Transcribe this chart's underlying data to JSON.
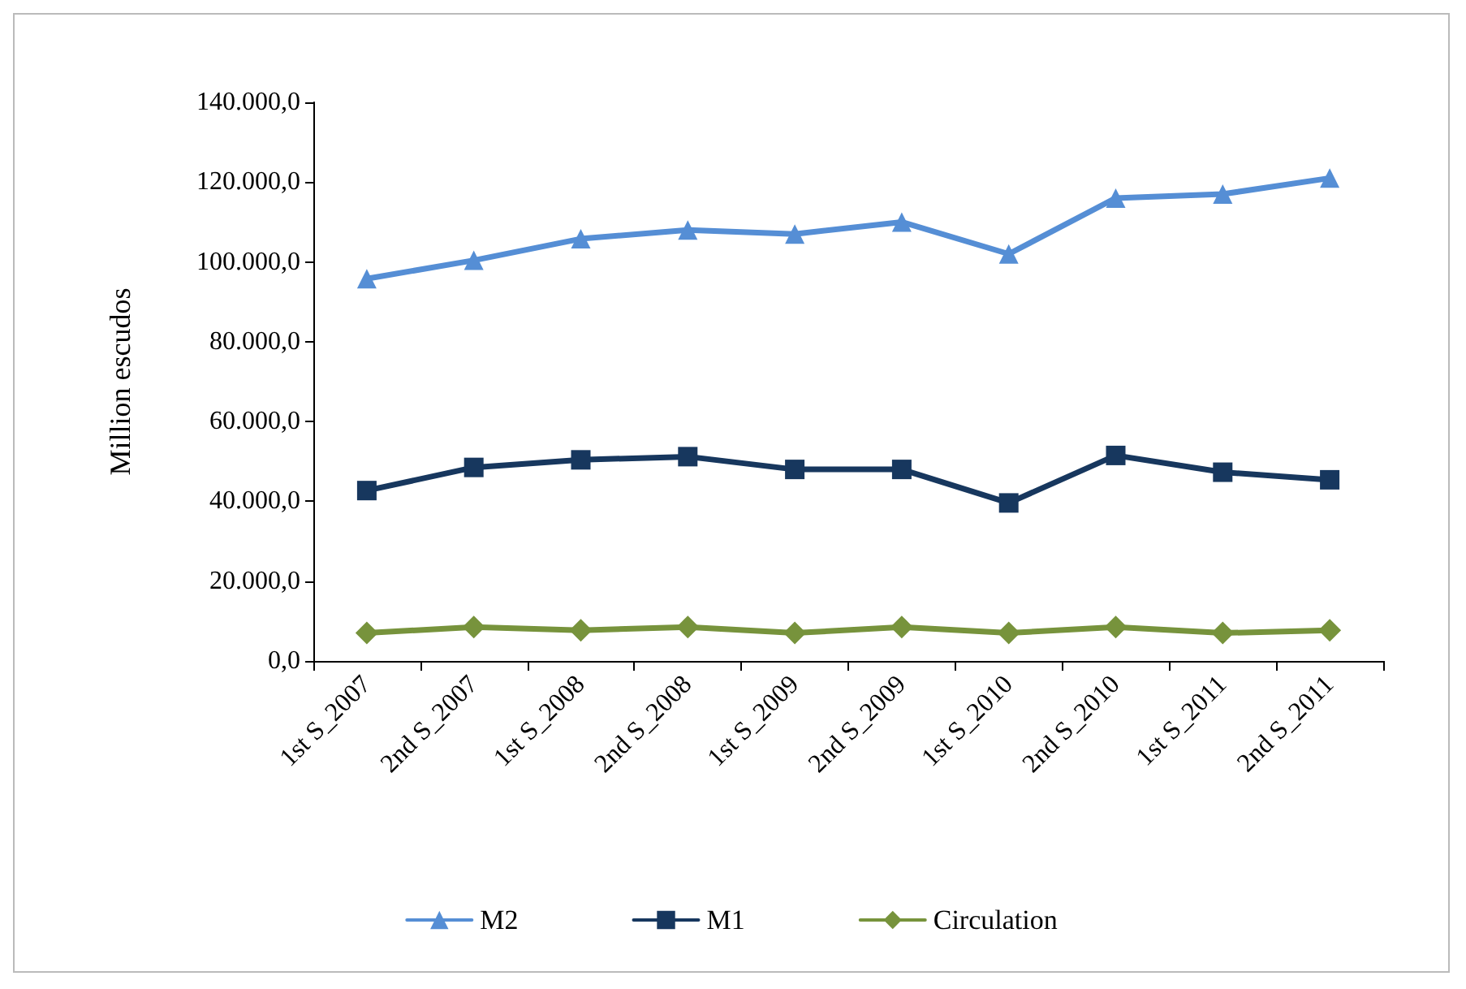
{
  "chart_data": {
    "type": "line",
    "ylabel": "Million escudos",
    "categories": [
      "1st S_2007",
      "2nd S_2007",
      "1st S_2008",
      "2nd S_2008",
      "1st S_2009",
      "2nd S_2009",
      "1st S_2010",
      "2nd S_2010",
      "1st S_2011",
      "2nd S_2011"
    ],
    "series": [
      {
        "name": "M2",
        "color": "#558ed5",
        "marker": "triangle",
        "values": [
          95800,
          100400,
          105800,
          108000,
          107000,
          110000,
          102000,
          116000,
          117000,
          121000
        ]
      },
      {
        "name": "M1",
        "color": "#17375e",
        "marker": "square",
        "values": [
          42700,
          48500,
          50400,
          51200,
          48000,
          48000,
          39600,
          51500,
          47300,
          45400
        ]
      },
      {
        "name": "Circulation",
        "color": "#77933c",
        "marker": "diamond",
        "values": [
          7000,
          8500,
          7700,
          8500,
          7000,
          8500,
          7000,
          8500,
          7000,
          7700
        ]
      }
    ],
    "ylim": [
      0,
      140000
    ],
    "yticks": [
      {
        "value": 0,
        "label": "0,0"
      },
      {
        "value": 20000,
        "label": "20.000,0"
      },
      {
        "value": 40000,
        "label": "40.000,0"
      },
      {
        "value": 60000,
        "label": "60.000,0"
      },
      {
        "value": 80000,
        "label": "80.000,0"
      },
      {
        "value": 100000,
        "label": "100.000,0"
      },
      {
        "value": 120000,
        "label": "120.000,0"
      },
      {
        "value": 140000,
        "label": "140.000,0"
      }
    ],
    "grid": false,
    "legend": "bottom",
    "line_style": "solid"
  }
}
